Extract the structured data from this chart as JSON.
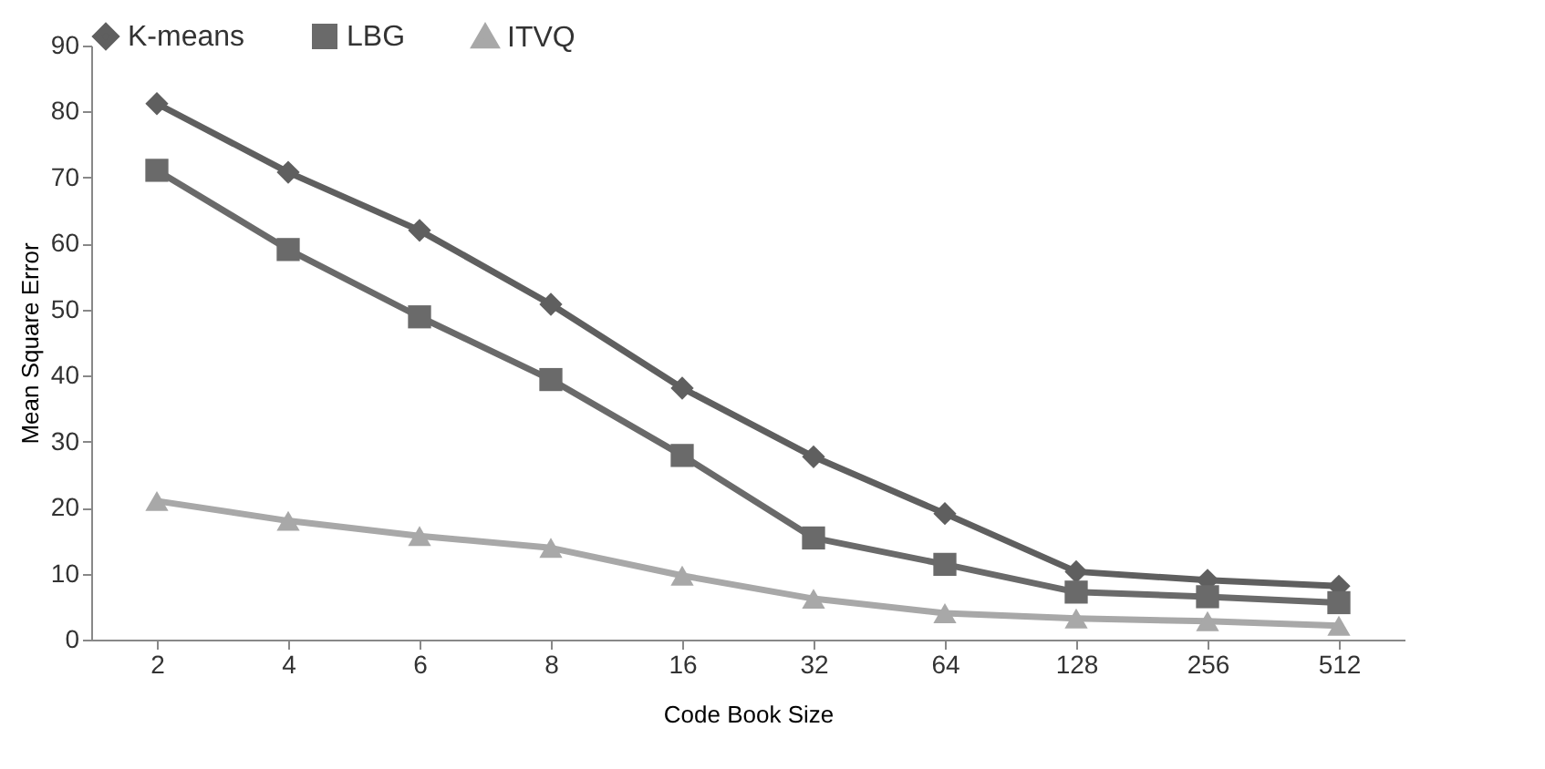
{
  "chart_data": {
    "type": "line",
    "xlabel": "Code Book Size",
    "ylabel": "Mean Square Error",
    "categories": [
      "2",
      "4",
      "6",
      "8",
      "16",
      "32",
      "64",
      "128",
      "256",
      "512"
    ],
    "series": [
      {
        "name": "K-means",
        "color": "#5f5f5f",
        "marker": "diamond",
        "values": [
          81.2,
          70.8,
          62,
          50.8,
          38.1,
          27.7,
          19.1,
          10.3,
          9,
          8.1
        ]
      },
      {
        "name": "LBG",
        "color": "#6a6a6a",
        "marker": "square",
        "values": [
          71.1,
          59.1,
          48.9,
          39.4,
          27.9,
          15.4,
          11.4,
          7.2,
          6.5,
          5.6
        ]
      },
      {
        "name": "ITVQ",
        "color": "#a8a8a8",
        "marker": "triangle",
        "values": [
          21,
          18,
          15.7,
          13.9,
          9.7,
          6.2,
          4,
          3.2,
          2.8,
          2.1
        ]
      }
    ],
    "ylim": [
      0,
      90
    ],
    "yticks": [
      0,
      10,
      20,
      30,
      40,
      50,
      60,
      70,
      80,
      90
    ],
    "grid": false,
    "legend": "top"
  }
}
